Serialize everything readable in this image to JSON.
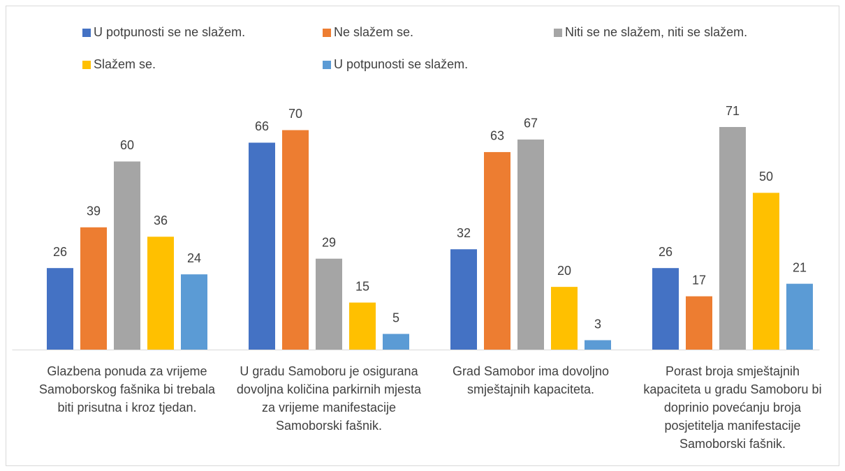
{
  "chart_data": {
    "type": "grouped_bar",
    "categories": [
      "Glazbena ponuda za vrijeme Samoborskog fašnika bi trebala biti prisutna i kroz tjedan.",
      "U gradu Samoboru je osigurana dovoljna količina parkirnih mjesta za vrijeme manifestacije Samoborski fašnik.",
      "Grad Samobor ima dovoljno smještajnih kapaciteta.",
      "Porast broja smještajnih kapaciteta u gradu Samoboru bi doprinio povećanju broja posjetitelja manifestacije Samoborski fašnik."
    ],
    "series": [
      {
        "name": "U potpunosti se ne slažem.",
        "color": "#4472c4",
        "values": [
          26,
          66,
          32,
          26
        ]
      },
      {
        "name": "Ne slažem se.",
        "color": "#ed7d31",
        "values": [
          39,
          70,
          63,
          17
        ]
      },
      {
        "name": "Niti se ne slažem, niti se slažem.",
        "color": "#a5a5a5",
        "values": [
          60,
          29,
          67,
          71
        ]
      },
      {
        "name": "Slažem se.",
        "color": "#ffc000",
        "values": [
          36,
          15,
          20,
          50
        ]
      },
      {
        "name": "U potpunosti se slažem.",
        "color": "#5b9bd5",
        "values": [
          24,
          5,
          3,
          21
        ]
      }
    ],
    "legend": "top"
  }
}
